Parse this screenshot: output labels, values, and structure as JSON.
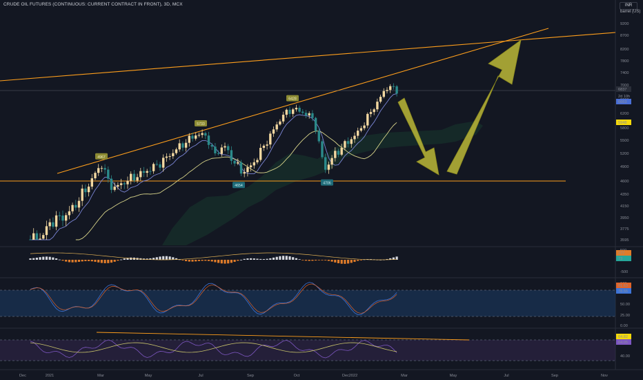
{
  "header": {
    "title": "CRUDE OIL FUTURES (CONTINUOUS: CURRENT CONTRACT IN FRONT), 3D, MCX",
    "currency": "INR",
    "unit": "barrel (US)"
  },
  "chart_data": {
    "type": "candlestick",
    "price_axis": [
      "9200",
      "8700",
      "8200",
      "7800",
      "7400",
      "7000",
      "6600",
      "6200",
      "5800",
      "5500",
      "5200",
      "4900",
      "4600",
      "4350",
      "4150",
      "3950",
      "3775",
      "3595"
    ],
    "time_axis": [
      "Dec",
      "2021",
      "Mar",
      "May",
      "Jul",
      "Sep",
      "Oct",
      "Dec",
      "2022",
      "Mar",
      "May",
      "Jul",
      "Sep",
      "Nov"
    ],
    "price_labels": {
      "last": "6837",
      "countdown": "2d 10h",
      "fast_ma": "6663",
      "slow_ma": "5948"
    },
    "badges": [
      {
        "text": "4967",
        "kind": "high",
        "price": 4967
      },
      {
        "text": "5733",
        "kind": "high",
        "price": 5733
      },
      {
        "text": "6428",
        "kind": "high",
        "price": 6428
      },
      {
        "text": "4654",
        "kind": "low",
        "price": 4654
      },
      {
        "text": "4706",
        "kind": "low",
        "price": 4706
      }
    ],
    "macd": {
      "axis": [
        "500",
        "-500"
      ],
      "labels": [
        "277",
        "73"
      ]
    },
    "stoch": {
      "axis": [
        "100",
        "50.00",
        "25.00",
        "0.00"
      ],
      "labels": [
        "81.63",
        "78.55"
      ]
    },
    "rsi": {
      "axis": [
        "40.00"
      ],
      "labels": [
        "64.82",
        "64.05"
      ]
    }
  },
  "colors": {
    "background": "#131722",
    "up": "#f2d7a0",
    "down": "#2b8a8a",
    "trendline": "#ff9f1c",
    "arrow": "#c7c33a",
    "fast_ma": "#7b86d6",
    "slow_ma": "#d8d48a"
  }
}
